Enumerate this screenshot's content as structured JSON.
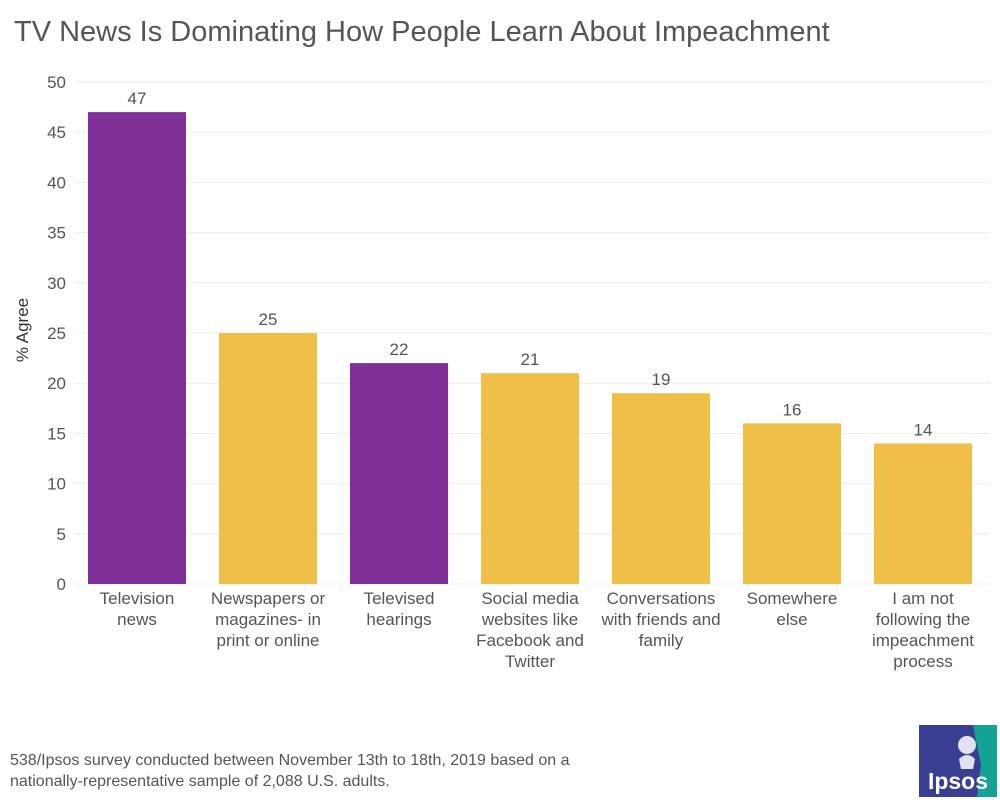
{
  "title": "TV News Is Dominating How People Learn About Impeachment",
  "footnote": {
    "line1": "538/Ipsos survey conducted between November 13th to 18th, 2019 based on a",
    "line2": "nationally-representative sample of 2,088 U.S. adults."
  },
  "logo": {
    "text": "Ipsos"
  },
  "colors": {
    "purple": "#7f3197",
    "yellow": "#f0bf48",
    "text": "#555555",
    "grid": "#ececec"
  },
  "chart_data": {
    "type": "bar",
    "title": "TV News Is Dominating How People Learn About Impeachment",
    "ylabel": "% Agree",
    "xlabel": "",
    "ylim": [
      0,
      50
    ],
    "yticks": [
      0,
      5,
      10,
      15,
      20,
      25,
      30,
      35,
      40,
      45,
      50
    ],
    "grid": true,
    "categories": [
      [
        "Television",
        "news"
      ],
      [
        "Newspapers or",
        "magazines- in",
        "print or online"
      ],
      [
        "Televised",
        "hearings"
      ],
      [
        "Social media",
        "websites like",
        "Facebook and",
        "Twitter"
      ],
      [
        "Conversations",
        "with friends and",
        "family"
      ],
      [
        "Somewhere",
        "else"
      ],
      [
        "I am not",
        "following the",
        "impeachment",
        "process"
      ]
    ],
    "values": [
      47,
      25,
      22,
      21,
      19,
      16,
      14
    ],
    "bar_colors": [
      "purple",
      "yellow",
      "purple",
      "yellow",
      "yellow",
      "yellow",
      "yellow"
    ]
  }
}
